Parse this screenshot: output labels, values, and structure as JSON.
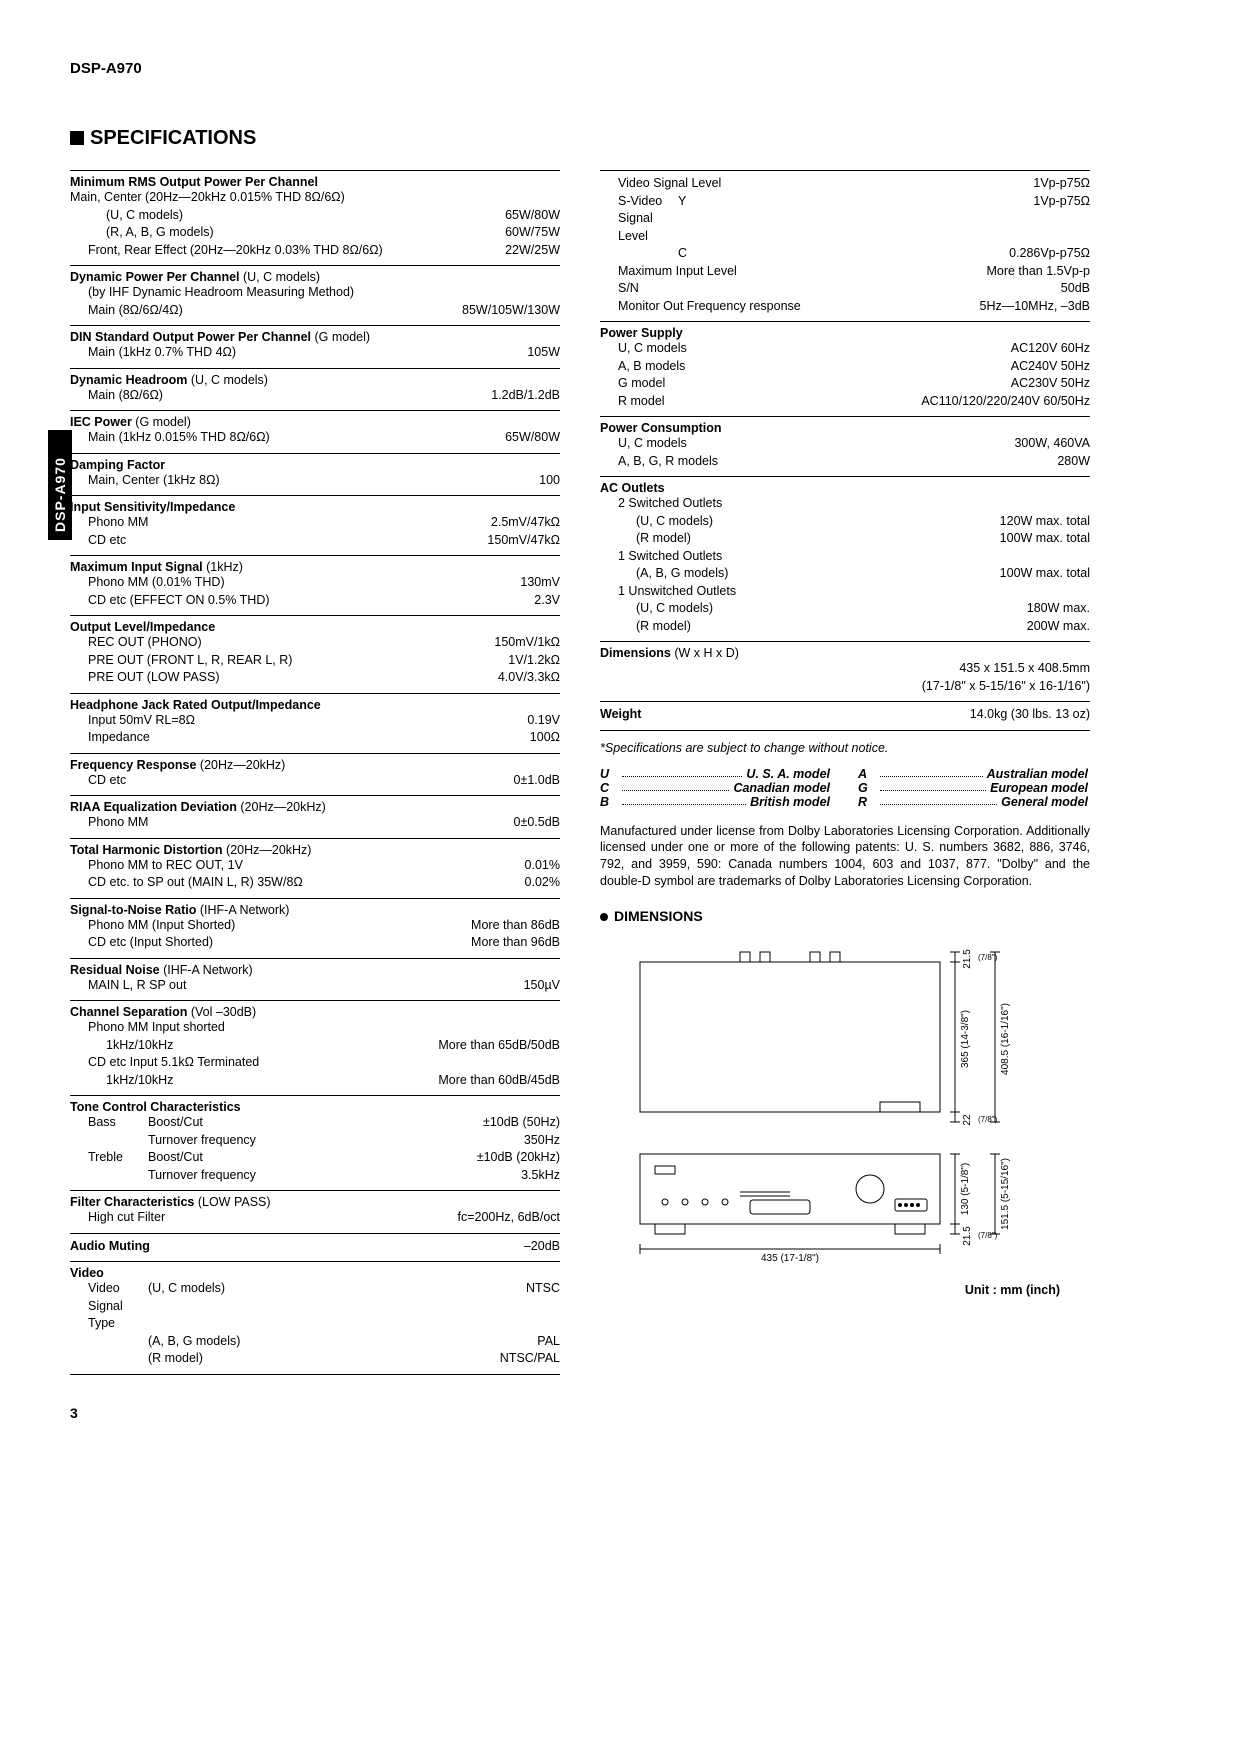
{
  "model": "DSP-A970",
  "side_tab": "DSP-A970",
  "page_number": "3",
  "section_title": "SPECIFICATIONS",
  "left": {
    "rms": {
      "title": "Minimum RMS Output Power Per Channel",
      "rows": [
        {
          "l": "Main, Center (20Hz—20kHz 0.015% THD 8Ω/6Ω)",
          "r": ""
        },
        {
          "l": "(U, C models)",
          "r": "65W/80W",
          "ind": 2
        },
        {
          "l": "(R, A, B, G models)",
          "r": "60W/75W",
          "ind": 2
        },
        {
          "l": "Front, Rear Effect (20Hz—20kHz 0.03% THD 8Ω/6Ω)",
          "r": "22W/25W",
          "ind": 1
        }
      ]
    },
    "dyn": {
      "title": "Dynamic Power Per Channel",
      "note": "(U, C models)",
      "rows": [
        {
          "l": "(by IHF Dynamic Headroom Measuring Method)",
          "r": "",
          "ind": 1
        },
        {
          "l": "Main (8Ω/6Ω/4Ω)",
          "r": "85W/105W/130W",
          "ind": 1
        }
      ]
    },
    "din": {
      "title": "DIN Standard Output Power Per Channel",
      "note": "(G model)",
      "rows": [
        {
          "l": "Main (1kHz 0.7% THD 4Ω)",
          "r": "105W",
          "ind": 1
        }
      ]
    },
    "headroom": {
      "title": "Dynamic Headroom",
      "note": "(U, C models)",
      "rows": [
        {
          "l": "Main (8Ω/6Ω)",
          "r": "1.2dB/1.2dB",
          "ind": 1
        }
      ]
    },
    "iec": {
      "title": "IEC Power",
      "note": "(G model)",
      "rows": [
        {
          "l": "Main (1kHz 0.015% THD 8Ω/6Ω)",
          "r": "65W/80W",
          "ind": 1
        }
      ]
    },
    "damp": {
      "title": "Damping Factor",
      "rows": [
        {
          "l": "Main, Center (1kHz 8Ω)",
          "r": "100",
          "ind": 1
        }
      ]
    },
    "sens": {
      "title": "Input Sensitivity/Impedance",
      "rows": [
        {
          "l": "Phono MM",
          "r": "2.5mV/47kΩ",
          "ind": 1
        },
        {
          "l": "CD etc",
          "r": "150mV/47kΩ",
          "ind": 1
        }
      ]
    },
    "maxin": {
      "title": "Maximum Input Signal",
      "note": "(1kHz)",
      "rows": [
        {
          "l": "Phono MM (0.01% THD)",
          "r": "130mV",
          "ind": 1
        },
        {
          "l": "CD etc (EFFECT ON 0.5% THD)",
          "r": "2.3V",
          "ind": 1
        }
      ]
    },
    "outlvl": {
      "title": "Output Level/Impedance",
      "rows": [
        {
          "l": "REC OUT (PHONO)",
          "r": "150mV/1kΩ",
          "ind": 1
        },
        {
          "l": "PRE OUT (FRONT L, R, REAR L, R)",
          "r": "1V/1.2kΩ",
          "ind": 1
        },
        {
          "l": "PRE OUT (LOW PASS)",
          "r": "4.0V/3.3kΩ",
          "ind": 1
        }
      ]
    },
    "hp": {
      "title": "Headphone Jack Rated Output/Impedance",
      "rows": [
        {
          "l": "Input 50mV RL=8Ω",
          "r": "0.19V",
          "ind": 1
        },
        {
          "l": "Impedance",
          "r": "100Ω",
          "ind": 1
        }
      ]
    },
    "freq": {
      "title": "Frequency Response",
      "note": "(20Hz—20kHz)",
      "rows": [
        {
          "l": "CD etc",
          "r": "0±1.0dB",
          "ind": 1
        }
      ]
    },
    "riaa": {
      "title": "RIAA Equalization Deviation",
      "note": "(20Hz—20kHz)",
      "rows": [
        {
          "l": "Phono MM",
          "r": "0±0.5dB",
          "ind": 1
        }
      ]
    },
    "thd": {
      "title": "Total Harmonic Distortion",
      "note": "(20Hz—20kHz)",
      "rows": [
        {
          "l": "Phono MM to REC OUT, 1V",
          "r": "0.01%",
          "ind": 1
        },
        {
          "l": "CD etc. to SP out (MAIN L, R) 35W/8Ω",
          "r": "0.02%",
          "ind": 1
        }
      ]
    },
    "snr": {
      "title": "Signal-to-Noise Ratio",
      "note": "(IHF-A Network)",
      "rows": [
        {
          "l": "Phono MM (Input Shorted)",
          "r": "More than 86dB",
          "ind": 1
        },
        {
          "l": "CD etc (Input Shorted)",
          "r": "More than 96dB",
          "ind": 1
        }
      ]
    },
    "resn": {
      "title": "Residual Noise",
      "note": "(IHF-A Network)",
      "rows": [
        {
          "l": "MAIN L, R SP out",
          "r": "150µV",
          "ind": 1
        }
      ]
    },
    "chsep": {
      "title": "Channel Separation",
      "note": "(Vol –30dB)",
      "rows": [
        {
          "l": "Phono MM Input shorted",
          "r": "",
          "ind": 1
        },
        {
          "l": "1kHz/10kHz",
          "r": "More than 65dB/50dB",
          "ind": 2
        },
        {
          "l": "CD etc Input 5.1kΩ Terminated",
          "r": "",
          "ind": 1
        },
        {
          "l": "1kHz/10kHz",
          "r": "More than 60dB/45dB",
          "ind": 2
        }
      ]
    },
    "tone": {
      "title": "Tone Control Characteristics",
      "rows": [
        {
          "l": "Bass",
          "c": "Boost/Cut",
          "r": "±10dB (50Hz)",
          "ind": 1
        },
        {
          "l": "",
          "c": "Turnover frequency",
          "r": "350Hz",
          "ind": 1
        },
        {
          "l": "Treble",
          "c": "Boost/Cut",
          "r": "±10dB (20kHz)",
          "ind": 1
        },
        {
          "l": "",
          "c": "Turnover frequency",
          "r": "3.5kHz",
          "ind": 1
        }
      ]
    },
    "filt": {
      "title": "Filter Characteristics",
      "note": "(LOW PASS)",
      "rows": [
        {
          "l": "High cut Filter",
          "r": "fc=200Hz, 6dB/oct",
          "ind": 1
        }
      ]
    },
    "mute": {
      "title": "Audio Muting",
      "rows": [
        {
          "r": "–20dB"
        }
      ]
    },
    "video": {
      "title": "Video",
      "rows": [
        {
          "l": "Video Signal Type",
          "c": "(U, C models)",
          "r": "NTSC",
          "ind": 1
        },
        {
          "l": "",
          "c": "(A, B, G models)",
          "r": "PAL",
          "ind": 1
        },
        {
          "l": "",
          "c": "(R model)",
          "r": "NTSC/PAL",
          "ind": 1
        }
      ]
    }
  },
  "right": {
    "video2": {
      "rows": [
        {
          "l": "Video Signal Level",
          "r": "1Vp-p75Ω",
          "ind": 1
        },
        {
          "l": "S-Video Signal Level",
          "c": "Y",
          "r": "1Vp-p75Ω",
          "ind": 1
        },
        {
          "l": "",
          "c": "C",
          "r": "0.286Vp-p75Ω",
          "ind": 1
        },
        {
          "l": "Maximum Input Level",
          "r": "More than 1.5Vp-p",
          "ind": 1
        },
        {
          "l": "S/N",
          "r": "50dB",
          "ind": 1
        },
        {
          "l": "Monitor Out Frequency response",
          "r": "5Hz—10MHz, –3dB",
          "ind": 1
        }
      ]
    },
    "psu": {
      "title": "Power Supply",
      "rows": [
        {
          "l": "U, C models",
          "r": "AC120V 60Hz",
          "ind": 1
        },
        {
          "l": "A, B models",
          "r": "AC240V 50Hz",
          "ind": 1
        },
        {
          "l": "G model",
          "r": "AC230V 50Hz",
          "ind": 1
        },
        {
          "l": "R model",
          "r": "AC110/120/220/240V 60/50Hz",
          "ind": 1
        }
      ]
    },
    "pwrcon": {
      "title": "Power Consumption",
      "rows": [
        {
          "l": "U, C models",
          "r": "300W, 460VA",
          "ind": 1
        },
        {
          "l": "A, B, G, R models",
          "r": "280W",
          "ind": 1
        }
      ]
    },
    "outlets": {
      "title": "AC Outlets",
      "rows": [
        {
          "l": "2 Switched Outlets",
          "r": "",
          "ind": 1
        },
        {
          "l": "(U, C models)",
          "r": "120W max. total",
          "ind": 2
        },
        {
          "l": "(R model)",
          "r": "100W max. total",
          "ind": 2
        },
        {
          "l": "1 Switched Outlets",
          "r": "",
          "ind": 1
        },
        {
          "l": "(A, B, G models)",
          "r": "100W max. total",
          "ind": 2
        },
        {
          "l": "1 Unswitched Outlets",
          "r": "",
          "ind": 1
        },
        {
          "l": "(U, C models)",
          "r": "180W max.",
          "ind": 2
        },
        {
          "l": "(R model)",
          "r": "200W max.",
          "ind": 2
        }
      ]
    },
    "dim": {
      "title": "Dimensions",
      "note": "(W x H x D)",
      "rows": [
        {
          "l": "",
          "r": "435 x 151.5 x 408.5mm"
        },
        {
          "l": "",
          "r": "(17-1/8\" x 5-15/16\" x 16-1/16\")"
        }
      ]
    },
    "weight": {
      "title": "Weight",
      "rows": [
        {
          "r": "14.0kg (30 lbs. 13 oz)"
        }
      ]
    }
  },
  "notice": "*Specifications are subject to change without notice.",
  "legend": [
    {
      "code": "U",
      "label": "U. S. A. model"
    },
    {
      "code": "C",
      "label": "Canadian model"
    },
    {
      "code": "B",
      "label": "British model"
    },
    {
      "code": "A",
      "label": "Australian model"
    },
    {
      "code": "G",
      "label": "European model"
    },
    {
      "code": "R",
      "label": "General model"
    }
  ],
  "para": "Manufactured under license from Dolby Laboratories Licensing Corporation. Additionally licensed under one or more of the following patents: U. S. numbers 3682, 886, 3746, 792, and 3959, 590: Canada numbers 1004, 603 and 1037, 877. \"Dolby\" and the double-D symbol are trademarks of Dolby Laboratories Licensing Corporation.",
  "dimensions_title": "DIMENSIONS",
  "unit_label": "Unit : mm (inch)",
  "diagram": {
    "width_mm": "435 (17-1/8\")",
    "h1_mm": "21.5",
    "h1_in": "(7/8\")",
    "h2_mm": "365 (14-3/8\")",
    "h3_mm": "408.5 (16-1/16\")",
    "h4_mm": "22",
    "h4_in": "(7/8\")",
    "h5_mm": "130 (5-1/8\")",
    "h6_mm": "151.5 (5-15/16\")",
    "h7_mm": "21.5",
    "h7_in": "(7/8\")"
  }
}
